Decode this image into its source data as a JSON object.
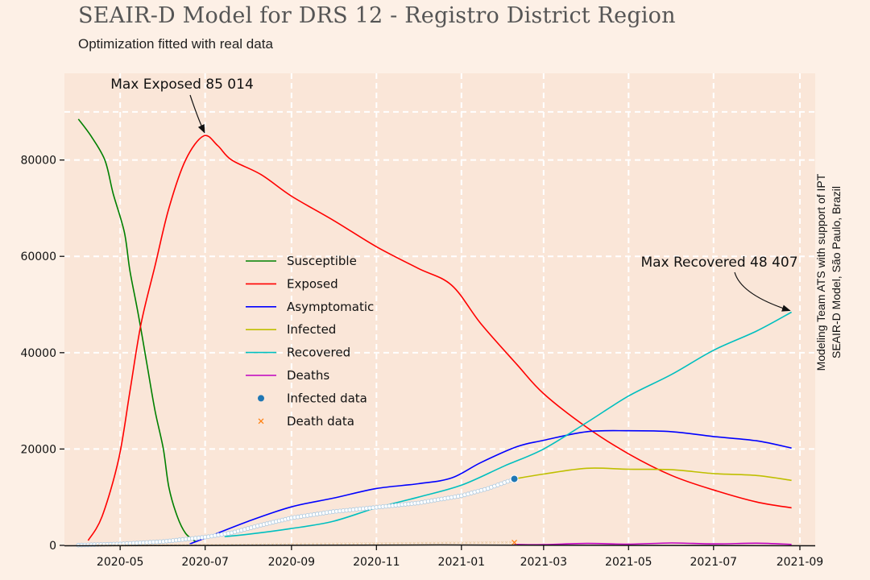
{
  "title": "SEAIR-D Model for DRS 12 - Registro District Region",
  "subtitle": "Optimization fitted with real data",
  "credit": {
    "line1": "Modeling Team ATS with support of IPT",
    "line2": "SEAIR-D Model, São Paulo, Brazil"
  },
  "chart_data": {
    "type": "line",
    "title": "SEAIR-D Model for DRS 12 - Registro District Region",
    "subtitle": "Optimization fitted with real data",
    "xlabel": "",
    "ylabel": "",
    "xlim": [
      "2020-03-22",
      "2021-09-12"
    ],
    "ylim": [
      0,
      98000
    ],
    "grid": true,
    "legend_position": "center-left",
    "x_ticks": [
      "2020-05-01",
      "2020-07-01",
      "2020-09-01",
      "2020-11-01",
      "2021-01-01",
      "2021-03-01",
      "2021-05-01",
      "2021-07-01",
      "2021-09-01"
    ],
    "x_tick_labels": [
      "2020-05",
      "2020-07",
      "2020-09",
      "2020-11",
      "2021-01",
      "2021-03",
      "2021-05",
      "2021-07",
      "2021-09"
    ],
    "y_ticks": [
      0,
      20000,
      40000,
      60000,
      80000
    ],
    "y_tick_labels": [
      "0",
      "20000",
      "40000",
      "60000",
      "80000"
    ],
    "series": [
      {
        "name": "Susceptible",
        "color": "#008000",
        "style": "line",
        "x": [
          "2020-04-01",
          "2020-04-10",
          "2020-04-20",
          "2020-04-26",
          "2020-05-04",
          "2020-05-08",
          "2020-05-14",
          "2020-05-20",
          "2020-05-26",
          "2020-06-01",
          "2020-06-05",
          "2020-06-11",
          "2020-06-17",
          "2020-06-24"
        ],
        "y": [
          88500,
          85000,
          80000,
          73000,
          65000,
          57000,
          48000,
          38000,
          28000,
          20000,
          12000,
          6000,
          2500,
          800
        ]
      },
      {
        "name": "Exposed",
        "color": "#ff0000",
        "style": "line",
        "x": [
          "2020-04-08",
          "2020-04-18",
          "2020-04-30",
          "2020-05-08",
          "2020-05-16",
          "2020-05-26",
          "2020-06-05",
          "2020-06-17",
          "2020-06-30",
          "2020-07-10",
          "2020-07-20",
          "2020-08-10",
          "2020-09-01",
          "2020-10-01",
          "2020-11-01",
          "2020-12-01",
          "2020-12-25",
          "2021-01-15",
          "2021-02-10",
          "2021-03-01",
          "2021-04-01",
          "2021-05-01",
          "2021-06-01",
          "2021-07-01",
          "2021-08-01",
          "2021-08-26"
        ],
        "y": [
          1000,
          6000,
          18000,
          32000,
          46000,
          58000,
          70000,
          80000,
          85014,
          83000,
          80000,
          77000,
          72500,
          67500,
          62000,
          57500,
          54000,
          46000,
          37500,
          31500,
          24500,
          19000,
          14500,
          11500,
          9000,
          7800
        ]
      },
      {
        "name": "Asymptomatic",
        "color": "#0000ff",
        "style": "line",
        "x": [
          "2020-06-20",
          "2020-07-01",
          "2020-08-01",
          "2020-09-01",
          "2020-10-01",
          "2020-11-01",
          "2020-12-01",
          "2020-12-25",
          "2021-01-15",
          "2021-02-10",
          "2021-03-01",
          "2021-04-01",
          "2021-05-01",
          "2021-06-01",
          "2021-07-01",
          "2021-08-01",
          "2021-08-26"
        ],
        "y": [
          300,
          1500,
          5000,
          8000,
          9800,
          11800,
          12800,
          14000,
          17200,
          20500,
          21800,
          23600,
          23800,
          23600,
          22600,
          21700,
          20200
        ]
      },
      {
        "name": "Infected",
        "color": "#bfbf00",
        "style": "line",
        "x": [
          "2021-02-08",
          "2021-03-01",
          "2021-04-01",
          "2021-05-01",
          "2021-06-01",
          "2021-07-01",
          "2021-08-01",
          "2021-08-26"
        ],
        "y": [
          13800,
          14800,
          16000,
          15800,
          15700,
          14900,
          14500,
          13500
        ]
      },
      {
        "name": "Recovered",
        "color": "#00bfbf",
        "style": "line",
        "x": [
          "2020-07-15",
          "2020-08-01",
          "2020-09-01",
          "2020-10-01",
          "2020-11-01",
          "2020-12-01",
          "2021-01-01",
          "2021-02-01",
          "2021-03-01",
          "2021-04-01",
          "2021-05-01",
          "2021-06-01",
          "2021-07-01",
          "2021-08-01",
          "2021-08-26"
        ],
        "y": [
          1800,
          2300,
          3500,
          5000,
          7800,
          10000,
          12500,
          16500,
          20000,
          25500,
          31000,
          35500,
          40500,
          44500,
          48407
        ]
      },
      {
        "name": "Deaths",
        "color": "#bf00bf",
        "style": "line",
        "x": [
          "2021-02-08",
          "2021-03-01",
          "2021-04-01",
          "2021-05-01",
          "2021-06-01",
          "2021-07-01",
          "2021-08-01",
          "2021-08-26"
        ],
        "y": [
          200,
          150,
          400,
          250,
          500,
          300,
          450,
          200
        ]
      },
      {
        "name": "Infected data",
        "color": "#1f77b4",
        "style": "dots",
        "x": [
          "2020-04-01",
          "2020-05-01",
          "2020-06-01",
          "2020-07-01",
          "2020-07-20",
          "2020-08-10",
          "2020-09-01",
          "2020-10-01",
          "2020-11-01",
          "2020-12-01",
          "2021-01-01",
          "2021-01-20",
          "2021-02-08"
        ],
        "y": [
          50,
          300,
          800,
          1700,
          2600,
          4200,
          5700,
          7000,
          7900,
          8800,
          10300,
          11800,
          13800
        ]
      },
      {
        "name": "Death data",
        "color": "#ff7f0e",
        "style": "x",
        "x": [
          "2020-04-15",
          "2020-06-01",
          "2020-08-01",
          "2020-10-01",
          "2020-12-01",
          "2021-02-08"
        ],
        "y": [
          0,
          50,
          150,
          300,
          450,
          600
        ]
      }
    ],
    "annotations": [
      {
        "text": "Max Exposed 85 014",
        "x": "2020-06-30",
        "y": 85014
      },
      {
        "text": "Max Recovered 48 407",
        "x": "2021-08-26",
        "y": 48407
      }
    ]
  }
}
